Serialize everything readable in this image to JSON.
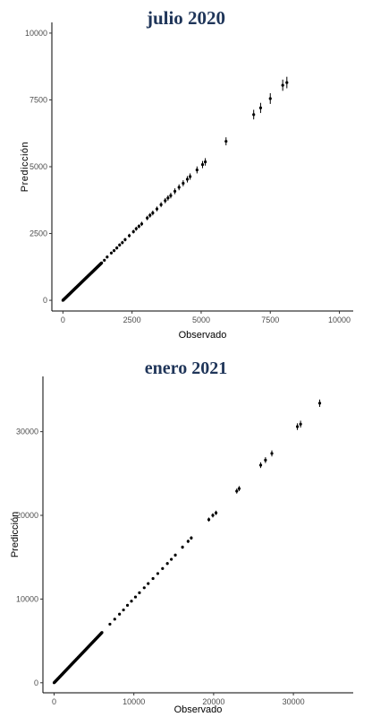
{
  "chart_data": [
    {
      "type": "scatter",
      "title": "julio 2020",
      "xlabel": "Observado",
      "ylabel": "Predicción",
      "xlim": [
        -400,
        10500
      ],
      "ylim": [
        -400,
        10400
      ],
      "xticks": [
        0,
        2500,
        5000,
        7500,
        10000
      ],
      "yticks": [
        0,
        2500,
        5000,
        7500,
        10000
      ],
      "xtick_labels": [
        "0",
        "2500",
        "5000",
        "7500",
        "10000"
      ],
      "ytick_labels": [
        "0",
        "2500",
        "5000",
        "7500",
        "10000"
      ],
      "grid": false,
      "legend": "none",
      "error_bars": true,
      "dense_range": [
        0,
        1400
      ],
      "points": [
        {
          "x": 1500,
          "y": 1500,
          "err": 45
        },
        {
          "x": 1600,
          "y": 1620,
          "err": 50
        },
        {
          "x": 1750,
          "y": 1770,
          "err": 55
        },
        {
          "x": 1850,
          "y": 1860,
          "err": 55
        },
        {
          "x": 1950,
          "y": 1960,
          "err": 60
        },
        {
          "x": 2050,
          "y": 2070,
          "err": 60
        },
        {
          "x": 2150,
          "y": 2160,
          "err": 65
        },
        {
          "x": 2250,
          "y": 2270,
          "err": 65
        },
        {
          "x": 2400,
          "y": 2420,
          "err": 70
        },
        {
          "x": 2550,
          "y": 2570,
          "err": 70
        },
        {
          "x": 2650,
          "y": 2680,
          "err": 75
        },
        {
          "x": 2750,
          "y": 2770,
          "err": 75
        },
        {
          "x": 2850,
          "y": 2860,
          "err": 80
        },
        {
          "x": 3050,
          "y": 3080,
          "err": 85
        },
        {
          "x": 3150,
          "y": 3180,
          "err": 85
        },
        {
          "x": 3250,
          "y": 3270,
          "err": 90
        },
        {
          "x": 3400,
          "y": 3420,
          "err": 90
        },
        {
          "x": 3550,
          "y": 3580,
          "err": 95
        },
        {
          "x": 3700,
          "y": 3730,
          "err": 100
        },
        {
          "x": 3800,
          "y": 3830,
          "err": 100
        },
        {
          "x": 3900,
          "y": 3920,
          "err": 105
        },
        {
          "x": 4050,
          "y": 4080,
          "err": 110
        },
        {
          "x": 4200,
          "y": 4230,
          "err": 110
        },
        {
          "x": 4350,
          "y": 4380,
          "err": 115
        },
        {
          "x": 4500,
          "y": 4530,
          "err": 120
        },
        {
          "x": 4600,
          "y": 4630,
          "err": 120
        },
        {
          "x": 4850,
          "y": 4880,
          "err": 130
        },
        {
          "x": 5050,
          "y": 5080,
          "err": 135
        },
        {
          "x": 5150,
          "y": 5180,
          "err": 140
        },
        {
          "x": 5900,
          "y": 5950,
          "err": 150
        },
        {
          "x": 6900,
          "y": 6950,
          "err": 180
        },
        {
          "x": 7150,
          "y": 7200,
          "err": 190
        },
        {
          "x": 7500,
          "y": 7550,
          "err": 200
        },
        {
          "x": 7950,
          "y": 8050,
          "err": 210
        },
        {
          "x": 8100,
          "y": 8150,
          "err": 215
        }
      ]
    },
    {
      "type": "scatter",
      "title": "enero 2021",
      "xlabel": "Observado",
      "ylabel": "Predicción",
      "xlim": [
        -1400,
        37500
      ],
      "ylim": [
        -1200,
        36600
      ],
      "xticks": [
        0,
        10000,
        20000,
        30000
      ],
      "yticks": [
        0,
        10000,
        20000,
        30000
      ],
      "xtick_labels": [
        "0",
        "10000",
        "20000",
        "30000"
      ],
      "ytick_labels": [
        "0",
        "10000",
        "20000",
        "30000"
      ],
      "grid": false,
      "legend": "none",
      "error_bars": true,
      "dense_range": [
        0,
        6000
      ],
      "points": [
        {
          "x": 7000,
          "y": 7000,
          "err": 90
        },
        {
          "x": 7600,
          "y": 7600,
          "err": 95
        },
        {
          "x": 8200,
          "y": 8200,
          "err": 100
        },
        {
          "x": 8700,
          "y": 8700,
          "err": 105
        },
        {
          "x": 9200,
          "y": 9250,
          "err": 110
        },
        {
          "x": 9700,
          "y": 9750,
          "err": 115
        },
        {
          "x": 10200,
          "y": 10250,
          "err": 120
        },
        {
          "x": 10700,
          "y": 10750,
          "err": 125
        },
        {
          "x": 11300,
          "y": 11350,
          "err": 130
        },
        {
          "x": 11800,
          "y": 11850,
          "err": 135
        },
        {
          "x": 12400,
          "y": 12450,
          "err": 140
        },
        {
          "x": 13000,
          "y": 13050,
          "err": 150
        },
        {
          "x": 13600,
          "y": 13650,
          "err": 155
        },
        {
          "x": 14200,
          "y": 14250,
          "err": 160
        },
        {
          "x": 14700,
          "y": 14750,
          "err": 170
        },
        {
          "x": 15200,
          "y": 15250,
          "err": 180
        },
        {
          "x": 16100,
          "y": 16200,
          "err": 190
        },
        {
          "x": 16800,
          "y": 16900,
          "err": 200
        },
        {
          "x": 17200,
          "y": 17300,
          "err": 210
        },
        {
          "x": 19400,
          "y": 19500,
          "err": 240
        },
        {
          "x": 19900,
          "y": 20000,
          "err": 250
        },
        {
          "x": 20300,
          "y": 20300,
          "err": 260
        },
        {
          "x": 22900,
          "y": 22900,
          "err": 300
        },
        {
          "x": 23200,
          "y": 23200,
          "err": 300
        },
        {
          "x": 25900,
          "y": 26000,
          "err": 340
        },
        {
          "x": 26500,
          "y": 26600,
          "err": 350
        },
        {
          "x": 27300,
          "y": 27400,
          "err": 360
        },
        {
          "x": 30500,
          "y": 30600,
          "err": 400
        },
        {
          "x": 30900,
          "y": 30900,
          "err": 410
        },
        {
          "x": 33300,
          "y": 33400,
          "err": 440
        }
      ]
    }
  ]
}
